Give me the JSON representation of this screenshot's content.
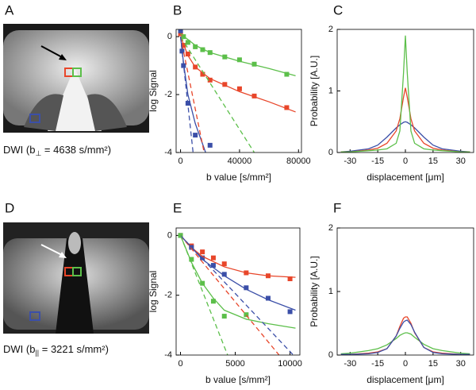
{
  "panels": [
    {
      "label": "A",
      "caption": {
        "pre": "DWI (b",
        "sub": "⊥",
        "post": " = 4638 s/mm²)"
      }
    },
    {
      "label": "B"
    },
    {
      "label": "C"
    },
    {
      "label": "D",
      "caption": {
        "pre": "DWI (b",
        "sub": "||",
        "post": " = 3221 s/mm²)"
      }
    },
    {
      "label": "E"
    },
    {
      "label": "F"
    }
  ],
  "chart_data": [
    {
      "type": "line",
      "xlabel": "b value [s/mm²]",
      "ylabel": "log Signal",
      "xlim": [
        -3000,
        82000
      ],
      "ylim": [
        -4,
        0.25
      ],
      "xticks": [
        0,
        40000,
        80000
      ],
      "yticks": [
        0,
        -2,
        -4
      ],
      "series": [
        {
          "color": "#5cbf4a",
          "style": "marker",
          "x": [
            0,
            2000,
            5000,
            10000,
            15000,
            20000,
            30000,
            40000,
            50000,
            72000
          ],
          "values": [
            0.2,
            0,
            -0.2,
            -0.35,
            -0.45,
            -0.55,
            -0.7,
            -0.8,
            -0.95,
            -1.3
          ]
        },
        {
          "color": "#e8462a",
          "style": "marker",
          "x": [
            0,
            2000,
            5000,
            10000,
            15000,
            20000,
            30000,
            40000,
            50000,
            72000
          ],
          "values": [
            0.1,
            -0.3,
            -0.6,
            -1.05,
            -1.3,
            -1.5,
            -1.65,
            -1.8,
            -2.05,
            -2.45
          ]
        },
        {
          "color": "#3b4fa8",
          "style": "marker",
          "x": [
            0,
            1000,
            2000,
            5000,
            10000,
            20000
          ],
          "values": [
            0.2,
            -0.5,
            -1.0,
            -2.3,
            -3.4,
            -3.75
          ]
        },
        {
          "color": "#5cbf4a",
          "style": "solid",
          "x": [
            0,
            10000,
            20000,
            40000,
            60000,
            78000
          ],
          "values": [
            0.1,
            -0.3,
            -0.55,
            -0.85,
            -1.1,
            -1.35
          ]
        },
        {
          "color": "#e8462a",
          "style": "solid",
          "x": [
            0,
            5000,
            10000,
            20000,
            40000,
            60000,
            78000
          ],
          "values": [
            0,
            -0.65,
            -1.05,
            -1.45,
            -1.9,
            -2.25,
            -2.6
          ]
        },
        {
          "color": "#3b4fa8",
          "style": "solid",
          "x": [
            0,
            2000,
            5000,
            10000,
            17000
          ],
          "values": [
            0,
            -0.9,
            -2.0,
            -3.0,
            -4
          ]
        },
        {
          "color": "#5cbf4a",
          "style": "dashed",
          "x": [
            0,
            50000
          ],
          "values": [
            0,
            -4
          ]
        },
        {
          "color": "#e8462a",
          "style": "dashed",
          "x": [
            0,
            16000
          ],
          "values": [
            0,
            -4
          ]
        },
        {
          "color": "#3b4fa8",
          "style": "dashed",
          "x": [
            0,
            8500
          ],
          "values": [
            0,
            -4
          ]
        }
      ]
    },
    {
      "type": "line",
      "xlabel": "displacement [μm]",
      "ylabel": "Probability [A.U.]",
      "xlim": [
        -37,
        37
      ],
      "ylim": [
        0,
        2
      ],
      "xticks": [
        -30,
        -15,
        0,
        15,
        30
      ],
      "yticks": [
        0,
        1,
        2
      ],
      "series": [
        {
          "color": "#3b4fa8",
          "style": "solid",
          "x": [
            -35,
            -30,
            -20,
            -15,
            -10,
            -5,
            -3,
            -1,
            0,
            1,
            3,
            5,
            10,
            15,
            20,
            30,
            35
          ],
          "values": [
            0.01,
            0.02,
            0.06,
            0.12,
            0.25,
            0.4,
            0.45,
            0.49,
            0.5,
            0.49,
            0.45,
            0.4,
            0.25,
            0.12,
            0.06,
            0.02,
            0.01
          ]
        },
        {
          "color": "#e8462a",
          "style": "solid",
          "x": [
            -35,
            -30,
            -20,
            -15,
            -10,
            -5,
            -3,
            -1,
            0,
            1,
            3,
            5,
            10,
            15,
            20,
            30,
            35
          ],
          "values": [
            0.01,
            0.01,
            0.04,
            0.07,
            0.15,
            0.35,
            0.55,
            0.9,
            1.05,
            0.9,
            0.55,
            0.35,
            0.15,
            0.07,
            0.04,
            0.01,
            0.01
          ]
        },
        {
          "color": "#5cbf4a",
          "style": "solid",
          "x": [
            -35,
            -30,
            -20,
            -15,
            -10,
            -5,
            -3,
            -1,
            0,
            1,
            3,
            5,
            10,
            15,
            20,
            30,
            35
          ],
          "values": [
            0.01,
            0.01,
            0.03,
            0.04,
            0.06,
            0.15,
            0.35,
            1.3,
            1.9,
            1.3,
            0.35,
            0.15,
            0.06,
            0.04,
            0.03,
            0.01,
            0.01
          ]
        }
      ]
    },
    {
      "type": "line",
      "xlabel": "b value [s/mm²]",
      "ylabel": "log Signal",
      "xlim": [
        -400,
        10900
      ],
      "ylim": [
        -4,
        0.25
      ],
      "xticks": [
        0,
        5000,
        10000
      ],
      "yticks": [
        0,
        -2,
        -4
      ],
      "series": [
        {
          "color": "#e8462a",
          "style": "marker",
          "x": [
            0,
            1000,
            2000,
            3000,
            4000,
            6000,
            8000,
            10000
          ],
          "values": [
            0,
            -0.35,
            -0.55,
            -0.75,
            -0.95,
            -1.25,
            -1.35,
            -1.45
          ]
        },
        {
          "color": "#3b4fa8",
          "style": "marker",
          "x": [
            0,
            1000,
            2000,
            3000,
            4000,
            6000,
            8000,
            10000
          ],
          "values": [
            0,
            -0.4,
            -0.75,
            -1.0,
            -1.3,
            -1.75,
            -2.1,
            -2.55
          ]
        },
        {
          "color": "#5cbf4a",
          "style": "marker",
          "x": [
            0,
            1000,
            2000,
            3000,
            4000,
            6000
          ],
          "values": [
            0,
            -0.8,
            -1.6,
            -2.2,
            -2.7,
            -2.65
          ]
        },
        {
          "color": "#e8462a",
          "style": "solid",
          "x": [
            0,
            1000,
            2000,
            4000,
            6000,
            8000,
            10500
          ],
          "values": [
            0,
            -0.4,
            -0.7,
            -1.05,
            -1.25,
            -1.35,
            -1.4
          ]
        },
        {
          "color": "#3b4fa8",
          "style": "solid",
          "x": [
            0,
            2000,
            4000,
            6000,
            8000,
            10500
          ],
          "values": [
            0,
            -0.8,
            -1.35,
            -1.8,
            -2.15,
            -2.5
          ]
        },
        {
          "color": "#5cbf4a",
          "style": "solid",
          "x": [
            0,
            1000,
            2000,
            3000,
            4000,
            6000,
            8000,
            10500
          ],
          "values": [
            0,
            -0.9,
            -1.6,
            -2.1,
            -2.5,
            -2.8,
            -2.95,
            -3.1
          ]
        },
        {
          "color": "#e8462a",
          "style": "dashed",
          "x": [
            0,
            9000
          ],
          "values": [
            0,
            -4
          ]
        },
        {
          "color": "#3b4fa8",
          "style": "dashed",
          "x": [
            0,
            10300
          ],
          "values": [
            0,
            -4
          ]
        },
        {
          "color": "#5cbf4a",
          "style": "dashed",
          "x": [
            0,
            4300
          ],
          "values": [
            0,
            -4
          ]
        }
      ]
    },
    {
      "type": "line",
      "xlabel": "displacement [μm]",
      "ylabel": "Probability [A.U.]",
      "xlim": [
        -37,
        37
      ],
      "ylim": [
        0,
        2
      ],
      "xticks": [
        -30,
        -15,
        0,
        15,
        30
      ],
      "yticks": [
        0,
        1,
        2
      ],
      "series": [
        {
          "color": "#5cbf4a",
          "style": "solid",
          "x": [
            -35,
            -30,
            -20,
            -15,
            -10,
            -5,
            -3,
            -1,
            0,
            1,
            3,
            5,
            10,
            15,
            20,
            30,
            35
          ],
          "values": [
            0.02,
            0.03,
            0.07,
            0.1,
            0.16,
            0.26,
            0.31,
            0.34,
            0.35,
            0.35,
            0.33,
            0.28,
            0.17,
            0.1,
            0.07,
            0.03,
            0.02
          ]
        },
        {
          "color": "#e8462a",
          "style": "solid",
          "x": [
            -35,
            -30,
            -20,
            -15,
            -10,
            -5,
            -3,
            -1,
            0,
            1,
            3,
            5,
            10,
            15,
            20,
            30,
            35
          ],
          "values": [
            0.01,
            0.01,
            0.03,
            0.05,
            0.1,
            0.3,
            0.45,
            0.58,
            0.6,
            0.6,
            0.5,
            0.35,
            0.12,
            0.05,
            0.03,
            0.01,
            0.01
          ]
        },
        {
          "color": "#3b4fa8",
          "style": "solid",
          "x": [
            -35,
            -30,
            -20,
            -15,
            -10,
            -5,
            -3,
            -1,
            0,
            1,
            3,
            5,
            10,
            15,
            20,
            30,
            35
          ],
          "values": [
            0.01,
            0.01,
            0.02,
            0.04,
            0.1,
            0.3,
            0.42,
            0.52,
            0.54,
            0.55,
            0.48,
            0.36,
            0.12,
            0.04,
            0.02,
            0.01,
            0.01
          ]
        }
      ]
    }
  ]
}
